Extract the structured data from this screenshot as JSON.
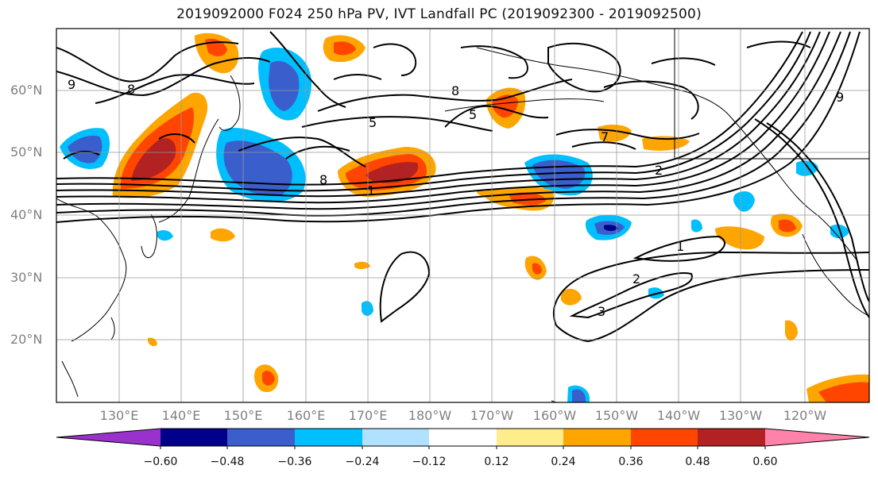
{
  "title": "2019092000 F024 250 hPa PV, IVT Landfall PC (2019092300 - 2019092500)",
  "lat_labels": [
    "60°N",
    "50°N",
    "40°N",
    "30°N",
    "20°N"
  ],
  "lon_labels": [
    "130°E",
    "140°E",
    "150°E",
    "160°E",
    "170°E",
    "180°W",
    "170°W",
    "160°W",
    "150°W",
    "140°W",
    "130°W",
    "120°W"
  ],
  "contour_labels": [
    "1",
    "2",
    "3",
    "5",
    "7",
    "8",
    "9"
  ],
  "colorbar": {
    "ticks": [
      "−0.60",
      "−0.48",
      "−0.36",
      "−0.24",
      "−0.12",
      "0.12",
      "0.24",
      "0.36",
      "0.48",
      "0.60"
    ],
    "colors": [
      "#9932cc",
      "#00008b",
      "#3a5fcd",
      "#00bfff",
      "#b0e2ff",
      "#ffffff",
      "#ffec8b",
      "#ffa500",
      "#ff4500",
      "#b22222",
      "#ff82ab"
    ]
  },
  "colors": {
    "neg_dark": "#00008b",
    "neg_mid": "#3a5fcd",
    "neg_light": "#00bfff",
    "neg_pale": "#b0e2ff",
    "pos_pale": "#ffec8b",
    "pos_mid": "#ffa500",
    "pos_strong": "#ff4500",
    "pos_dark": "#b22222"
  }
}
